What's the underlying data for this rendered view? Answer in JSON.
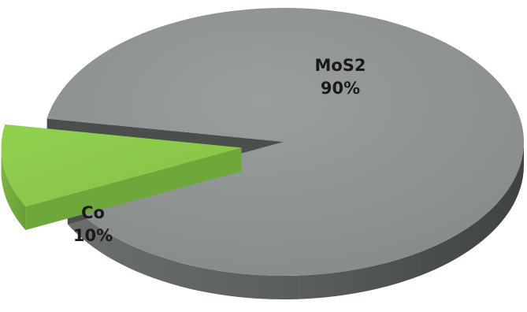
{
  "chart_data": {
    "type": "pie",
    "style": "3d-exploded",
    "slices": [
      {
        "label": "MoS2",
        "value": 90,
        "value_label": "90%",
        "color": "#8c9190",
        "side_color": "#4a4e4d",
        "exploded": false
      },
      {
        "label": "Co",
        "value": 10,
        "value_label": "10%",
        "color": "#8ecd4c",
        "side_color": "#6fa83a",
        "exploded": true
      }
    ]
  }
}
